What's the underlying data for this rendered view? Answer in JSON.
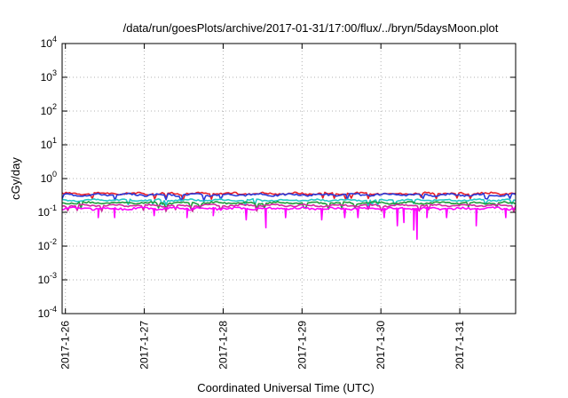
{
  "chart_data": {
    "type": "line",
    "title": "/data/run/goesPlots/archive/2017-01-31/17:00/flux/../bryn/5daysMoon.plot",
    "xlabel": "Coordinated Universal Time (UTC)",
    "ylabel": "cGy/day",
    "yscale": "log",
    "ylim": [
      0.0001,
      10000
    ],
    "xlim": [
      "2017-01-25T23:00",
      "2017-01-31T17:00"
    ],
    "grid": true,
    "legend": "none",
    "x_ticks": [
      "2017-1-26",
      "2017-1-27",
      "2017-1-28",
      "2017-1-29",
      "2017-1-30",
      "2017-1-31"
    ],
    "y_ticks": [
      {
        "base": "10",
        "exp": "-4"
      },
      {
        "base": "10",
        "exp": "-3"
      },
      {
        "base": "10",
        "exp": "-2"
      },
      {
        "base": "10",
        "exp": "-1"
      },
      {
        "base": "10",
        "exp": "0"
      },
      {
        "base": "10",
        "exp": "1"
      },
      {
        "base": "10",
        "exp": "2"
      },
      {
        "base": "10",
        "exp": "3"
      },
      {
        "base": "10",
        "exp": "4"
      }
    ],
    "series": [
      {
        "color": "#e8202a",
        "level": 0.36,
        "noise": 0.06,
        "dips": []
      },
      {
        "color": "#2a3bd8",
        "level": 0.33,
        "noise": 0.06,
        "dips": []
      },
      {
        "color": "#20c8c8",
        "level": 0.23,
        "noise": 0.05,
        "dips": []
      },
      {
        "color": "#1f9e3a",
        "level": 0.19,
        "noise": 0.05,
        "dips": []
      },
      {
        "color": "#d02aa0",
        "level": 0.16,
        "noise": 0.05,
        "dips": []
      },
      {
        "color": "#ff00ff",
        "level": 0.13,
        "noise": 0.07,
        "dips": [
          {
            "x": "2017-01-26T10:00",
            "value": 0.07
          },
          {
            "x": "2017-01-26T15:00",
            "value": 0.07
          },
          {
            "x": "2017-01-27T03:00",
            "value": 0.08
          },
          {
            "x": "2017-01-27T13:00",
            "value": 0.07
          },
          {
            "x": "2017-01-27T21:00",
            "value": 0.08
          },
          {
            "x": "2017-01-28T07:00",
            "value": 0.06
          },
          {
            "x": "2017-01-28T13:00",
            "value": 0.035
          },
          {
            "x": "2017-01-28T19:00",
            "value": 0.07
          },
          {
            "x": "2017-01-29T06:00",
            "value": 0.06
          },
          {
            "x": "2017-01-29T13:00",
            "value": 0.07
          },
          {
            "x": "2017-01-29T17:00",
            "value": 0.07
          },
          {
            "x": "2017-01-30T01:00",
            "value": 0.07
          },
          {
            "x": "2017-01-30T05:00",
            "value": 0.04
          },
          {
            "x": "2017-01-30T07:00",
            "value": 0.05
          },
          {
            "x": "2017-01-30T10:00",
            "value": 0.03
          },
          {
            "x": "2017-01-30T11:00",
            "value": 0.016
          },
          {
            "x": "2017-01-30T14:00",
            "value": 0.07
          },
          {
            "x": "2017-01-30T20:00",
            "value": 0.07
          },
          {
            "x": "2017-01-31T05:00",
            "value": 0.04
          },
          {
            "x": "2017-01-31T14:00",
            "value": 0.07
          }
        ]
      }
    ]
  }
}
